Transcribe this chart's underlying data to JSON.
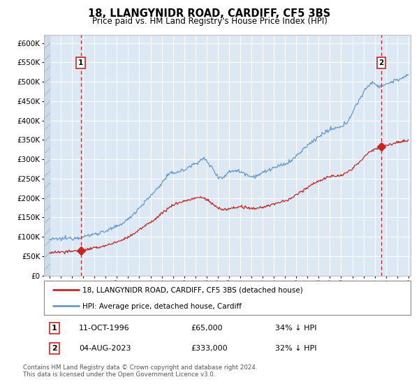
{
  "title": "18, LLANGYNIDR ROAD, CARDIFF, CF5 3BS",
  "subtitle": "Price paid vs. HM Land Registry's House Price Index (HPI)",
  "title_fontsize": 10.5,
  "subtitle_fontsize": 8.5,
  "background_color": "#ffffff",
  "plot_bg_color": "#dce9f5",
  "hatch_bg_color": "#c8d8e8",
  "grid_color": "#ffffff",
  "hpi_color": "#6699cc",
  "price_color": "#cc2222",
  "marker_color": "#cc2222",
  "vline_color": "#cc2222",
  "annotation_box_color": "#cc2222",
  "ylim": [
    0,
    620000
  ],
  "yticks": [
    0,
    50000,
    100000,
    150000,
    200000,
    250000,
    300000,
    350000,
    400000,
    450000,
    500000,
    550000,
    600000
  ],
  "point1_x": 1996.78,
  "point1_y": 65000,
  "point1_label": "1",
  "point1_date": "11-OCT-1996",
  "point1_price": "£65,000",
  "point1_hpi": "34% ↓ HPI",
  "point2_x": 2023.58,
  "point2_y": 333000,
  "point2_label": "2",
  "point2_date": "04-AUG-2023",
  "point2_price": "£333,000",
  "point2_hpi": "32% ↓ HPI",
  "legend_line1": "18, LLANGYNIDR ROAD, CARDIFF, CF5 3BS (detached house)",
  "legend_line2": "HPI: Average price, detached house, Cardiff",
  "footer": "Contains HM Land Registry data © Crown copyright and database right 2024.\nThis data is licensed under the Open Government Licence v3.0.",
  "xmin": 1993.5,
  "xmax": 2026.2,
  "hatch_xmax": 1994.08,
  "data_xstart": 1994.0
}
